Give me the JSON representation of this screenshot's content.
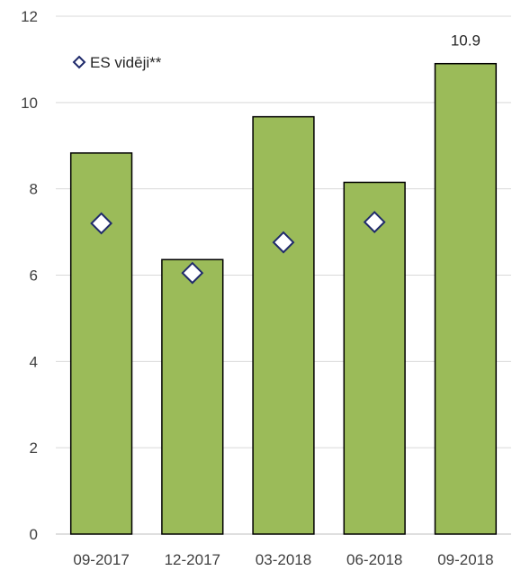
{
  "chart_data": {
    "type": "bar",
    "categories": [
      "09-2017",
      "12-2017",
      "03-2018",
      "06-2018",
      "09-2018"
    ],
    "series": [
      {
        "values": [
          8.83,
          6.36,
          9.67,
          8.15,
          10.9
        ],
        "color": "#9bbb59"
      },
      {
        "name": "ES vidēji**",
        "values": [
          7.2,
          6.05,
          6.76,
          7.23,
          null
        ],
        "marker": "diamond",
        "color": "#1f2a6b"
      }
    ],
    "data_labels": [
      {
        "series": 0,
        "index": 4,
        "text": "10.9"
      }
    ],
    "yticks": [
      "0",
      "2",
      "4",
      "6",
      "8",
      "10",
      "12"
    ],
    "ylim": [
      0,
      12
    ],
    "grid": true,
    "legend_position": "top-left"
  }
}
